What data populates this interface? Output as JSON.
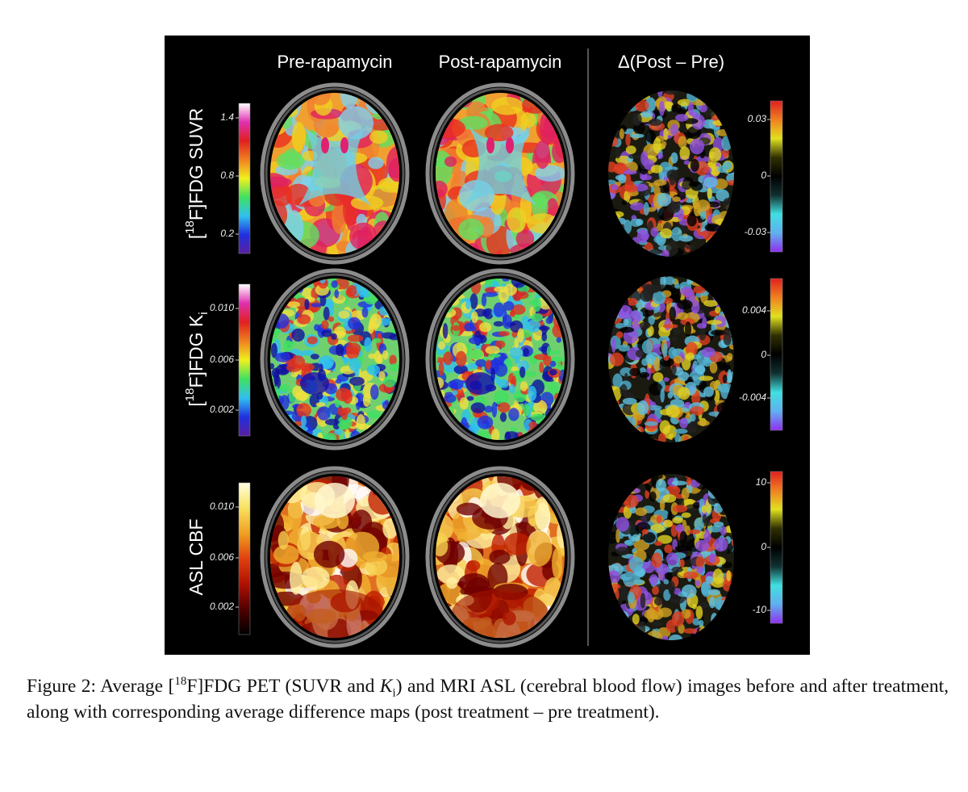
{
  "columns": [
    "Pre-rapamycin",
    "Post-rapamycin",
    "Δ(Post – Pre)"
  ],
  "rows": [
    {
      "label": [
        "[",
        "18",
        "F]FDG SUVR"
      ],
      "left_ticks": [
        "1.4",
        "0.8",
        "0.2"
      ],
      "right_ticks": [
        "0.03",
        "0",
        "-0.03"
      ]
    },
    {
      "label": [
        "[",
        "18",
        "F]FDG K",
        "i"
      ],
      "left_ticks": [
        "0.010",
        "0.006",
        "0.002"
      ],
      "right_ticks": [
        "0.004",
        "0",
        "-0.004"
      ]
    },
    {
      "label": [
        "ASL CBF"
      ],
      "left_ticks": [
        "0.010",
        "0.006",
        "0.002"
      ],
      "right_ticks": [
        "10",
        "0",
        "-10"
      ]
    }
  ],
  "caption": [
    "Figure 2:  Average [",
    "18",
    "F]FDG PET (SUVR and ",
    "K",
    "i",
    ") and MRI ASL (cerebral blood flow) images before and after treatment, along with corresponding average difference maps (post treatment – pre treatment)."
  ]
}
